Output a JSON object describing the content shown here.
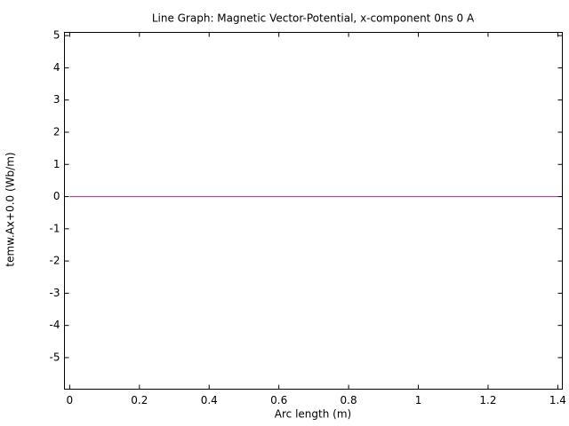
{
  "chart_data": {
    "type": "line",
    "title": "Line Graph: Magnetic Vector-Potential, x-component 0ns 0 A",
    "x_label": "Arc length (m)",
    "y_label": "temw.Ax+0.0 (Wb/m)",
    "x": [
      0,
      1.4
    ],
    "series": [
      {
        "color": "#e020e0",
        "values": [
          0,
          0
        ]
      }
    ],
    "xlim": [
      -0.015,
      1.413
    ],
    "ylim": [
      -5.98,
      5.1
    ],
    "xticks": [
      0,
      0.2,
      0.4,
      0.6,
      0.8,
      1,
      1.2,
      1.4
    ],
    "yticks": [
      -5,
      -4,
      -3,
      -2,
      -1,
      0,
      1,
      2,
      3,
      4,
      5
    ]
  }
}
